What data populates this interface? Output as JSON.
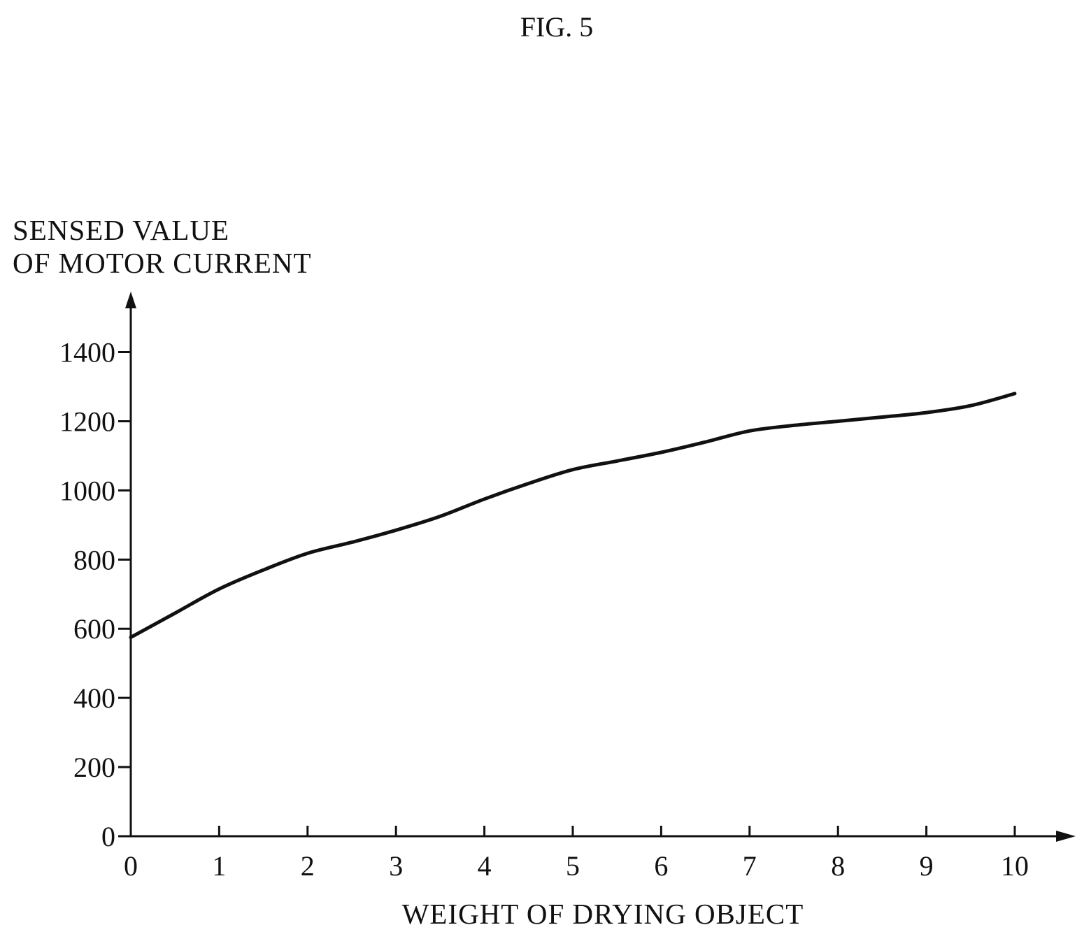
{
  "figure": {
    "label": "FIG. 5"
  },
  "chart_data": {
    "type": "line",
    "title": "",
    "xlabel": "WEIGHT OF DRYING OBJECT",
    "ylabel_lines": [
      "SENSED VALUE",
      "OF MOTOR CURRENT"
    ],
    "xlim": [
      0,
      10
    ],
    "ylim": [
      0,
      1400
    ],
    "x_ticks": [
      0,
      1,
      2,
      3,
      4,
      5,
      6,
      7,
      8,
      9,
      10
    ],
    "y_ticks": [
      0,
      200,
      400,
      600,
      800,
      1000,
      1200,
      1400
    ],
    "grid": false,
    "legend": "none",
    "line_color": "#111111",
    "series": [
      {
        "x": [
          0,
          0.5,
          1,
          1.5,
          2,
          2.5,
          3,
          3.5,
          4,
          4.5,
          5,
          5.5,
          6,
          6.5,
          7,
          7.5,
          8,
          8.5,
          9,
          9.5,
          10
        ],
        "values": [
          575,
          645,
          715,
          770,
          818,
          850,
          885,
          925,
          975,
          1020,
          1060,
          1085,
          1110,
          1140,
          1172,
          1188,
          1200,
          1212,
          1225,
          1245,
          1280
        ]
      }
    ]
  }
}
